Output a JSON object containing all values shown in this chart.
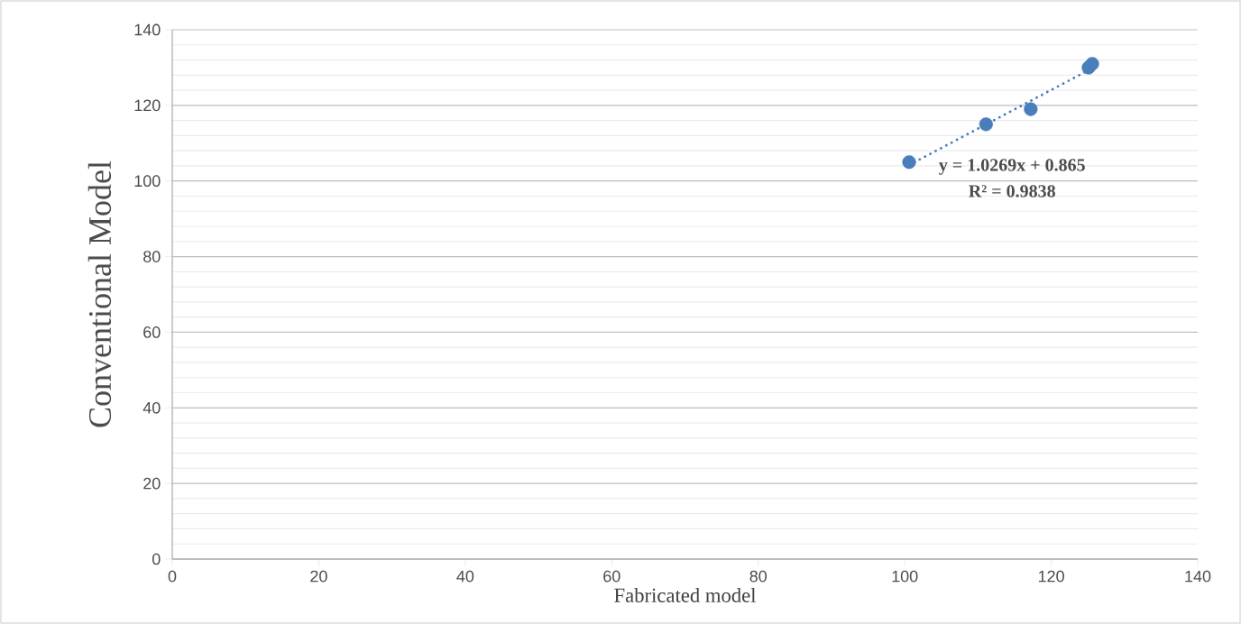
{
  "chart_data": {
    "type": "scatter",
    "xlabel": "Fabricated model",
    "ylabel": "Conventional Model",
    "annotations": [
      "y = 1.0269x + 0.865",
      "R² = 0.9838"
    ],
    "series": [
      {
        "color": "#4a7ebb",
        "x": [
          100.6,
          111.1,
          117.2,
          125.1,
          125.6
        ],
        "values": [
          105,
          115,
          119,
          130,
          131
        ],
        "marker": "circle"
      },
      {
        "type": "line",
        "color": "#4a7ebb",
        "x": [
          100.6,
          125.6
        ],
        "values": [
          104.2,
          129.8
        ],
        "line_style": "dotted",
        "marker": "none"
      }
    ],
    "xlim": [
      0,
      140
    ],
    "ylim": [
      0,
      140
    ],
    "xticks": [
      0,
      20,
      40,
      60,
      80,
      100,
      120,
      140
    ],
    "yticks": [
      0,
      20,
      40,
      60,
      80,
      100,
      120,
      140
    ],
    "grid": "y",
    "legend": false
  }
}
